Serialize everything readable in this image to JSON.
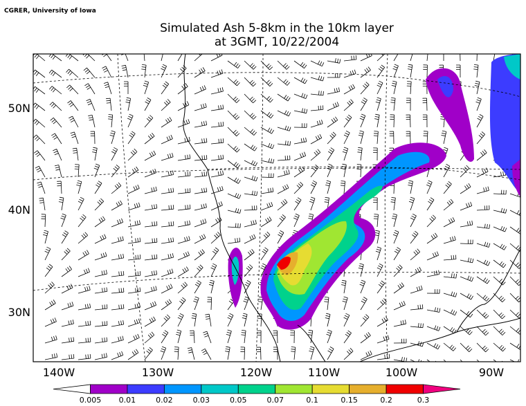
{
  "header": {
    "credit": "CGRER, University of Iowa",
    "title_line1": "Simulated Ash 5-8km in the 10km layer",
    "title_line2": "at 3GMT, 10/22/2004"
  },
  "map": {
    "lat_labels": [
      "50N",
      "40N",
      "30N"
    ],
    "lon_labels": [
      "140W",
      "130W",
      "120W",
      "110W",
      "100W",
      "90W"
    ]
  },
  "colorbar": {
    "labels": [
      "0.005",
      "0.01",
      "0.02",
      "0.03",
      "0.05",
      "0.07",
      "0.1",
      "0.15",
      "0.2",
      "0.3"
    ],
    "colors": [
      "#ffffff",
      "#a000c8",
      "#3c3cff",
      "#0096ff",
      "#00c8c8",
      "#00d28c",
      "#a0e632",
      "#e6dc32",
      "#e6af2d",
      "#f00000",
      "#f0007f"
    ]
  }
}
